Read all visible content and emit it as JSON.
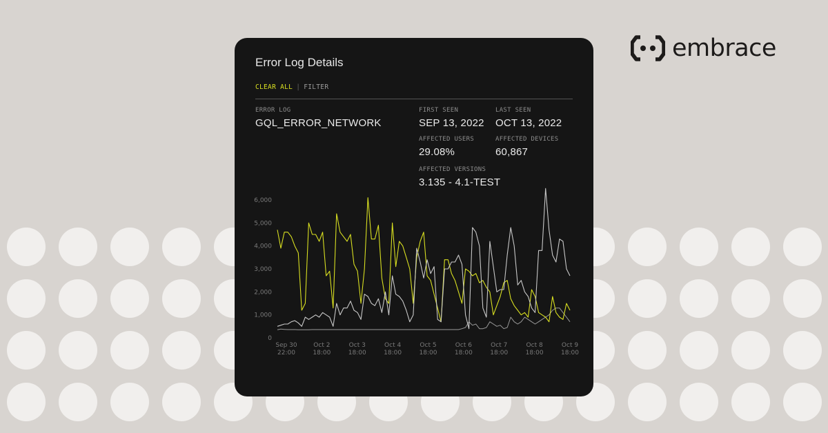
{
  "brand": {
    "name": "embrace"
  },
  "card": {
    "title": "Error Log Details",
    "actions": {
      "clear_all": "CLEAR ALL",
      "separator": "|",
      "filter": "FILTER"
    },
    "fields": {
      "error_log": {
        "label": "ERROR LOG",
        "value": "GQL_ERROR_NETWORK"
      },
      "first_seen": {
        "label": "FIRST SEEN",
        "value": "SEP 13, 2022"
      },
      "last_seen": {
        "label": "LAST SEEN",
        "value": "OCT 13, 2022"
      },
      "affected_users": {
        "label": "AFFECTED USERS",
        "value": "29.08%"
      },
      "affected_devices": {
        "label": "AFFECTED DEVICES",
        "value": "60,867"
      },
      "affected_versions": {
        "label": "AFFECTED VERSIONS",
        "value": "3.135 - 4.1-TEST"
      }
    }
  },
  "colors": {
    "background": "#d8d4d0",
    "dots": "#f1efed",
    "card": "#151515",
    "accent": "#d9e021",
    "secondary_line": "#c8c8c8",
    "flat_line": "#9a9a9a"
  },
  "chart_data": {
    "type": "line",
    "ylim": [
      0,
      6000
    ],
    "y_ticks": [
      "0",
      "1,000",
      "2,000",
      "3,000",
      "4,000",
      "5,000",
      "6,000"
    ],
    "y_tick_values": [
      0,
      1000,
      2000,
      3000,
      4000,
      5000,
      6000
    ],
    "x_ticks": [
      [
        "Sep 30",
        "22:00"
      ],
      [
        "Oct 2",
        "18:00"
      ],
      [
        "Oct 3",
        "18:00"
      ],
      [
        "Oct 4",
        "18:00"
      ],
      [
        "Oct 5",
        "18:00"
      ],
      [
        "Oct 6",
        "18:00"
      ],
      [
        "Oct 7",
        "18:00"
      ],
      [
        "Oct 8",
        "18:00"
      ],
      [
        "Oct 9",
        "18:00"
      ]
    ],
    "x_range": [
      0,
      84
    ],
    "series": [
      {
        "color": "#d9e021",
        "values": [
          4700,
          3900,
          4600,
          4600,
          4400,
          4000,
          3700,
          1200,
          1500,
          5000,
          4500,
          4500,
          4200,
          4600,
          2700,
          2900,
          1300,
          5400,
          4600,
          4400,
          4200,
          4500,
          3200,
          2900,
          1500,
          3000,
          6100,
          4300,
          4300,
          4900,
          2600,
          1700,
          1500,
          5000,
          3100,
          4200,
          4000,
          3500,
          3000,
          1500,
          3500,
          4200,
          4600,
          2700,
          2500,
          1900,
          1300,
          700,
          3400,
          3400,
          2800,
          2500,
          2000,
          1500,
          3000,
          2900,
          2700,
          2800,
          2400,
          2500,
          2200,
          2000,
          1000,
          1400,
          1800,
          2400,
          2500,
          1700,
          1400,
          1200,
          1000,
          1100,
          900,
          2100,
          1800,
          1100,
          1000,
          900,
          700,
          1800,
          1100,
          900,
          800,
          1500,
          1200
        ]
      },
      {
        "color": "#c8c8c8",
        "values": [
          500,
          550,
          600,
          600,
          700,
          750,
          650,
          500,
          900,
          800,
          900,
          1000,
          900,
          1100,
          1000,
          900,
          500,
          1500,
          1000,
          1300,
          1300,
          1600,
          1200,
          1100,
          800,
          1900,
          1800,
          1500,
          1400,
          1700,
          1100,
          2000,
          1000,
          2700,
          1900,
          1800,
          1600,
          1200,
          700,
          1000,
          3900,
          3300,
          2600,
          3400,
          2800,
          3100,
          800,
          700,
          3000,
          3000,
          3300,
          3300,
          3600,
          3200,
          1000,
          400,
          4800,
          4600,
          4000,
          1300,
          900,
          4200,
          3100,
          2000,
          2100,
          2100,
          3600,
          4800,
          4000,
          2300,
          2500,
          2000,
          1800,
          1300,
          1100,
          3800,
          3800,
          6500,
          4700,
          3600,
          3300,
          4300,
          4200,
          3000,
          2700
        ]
      },
      {
        "color": "#9a9a9a",
        "values": [
          350,
          380,
          370,
          360,
          360,
          360,
          350,
          350,
          350,
          350,
          360,
          360,
          360,
          360,
          360,
          360,
          360,
          360,
          360,
          360,
          360,
          360,
          360,
          360,
          360,
          360,
          360,
          360,
          360,
          360,
          360,
          360,
          360,
          360,
          360,
          360,
          360,
          360,
          360,
          360,
          360,
          360,
          360,
          360,
          360,
          360,
          360,
          360,
          360,
          360,
          360,
          360,
          360,
          400,
          450,
          700,
          550,
          600,
          400,
          400,
          450,
          700,
          600,
          500,
          550,
          400,
          450,
          900,
          700,
          600,
          700,
          900,
          800,
          700,
          600,
          700,
          800,
          900,
          1000,
          1200,
          1300,
          1300,
          1100,
          900,
          700
        ]
      }
    ]
  }
}
